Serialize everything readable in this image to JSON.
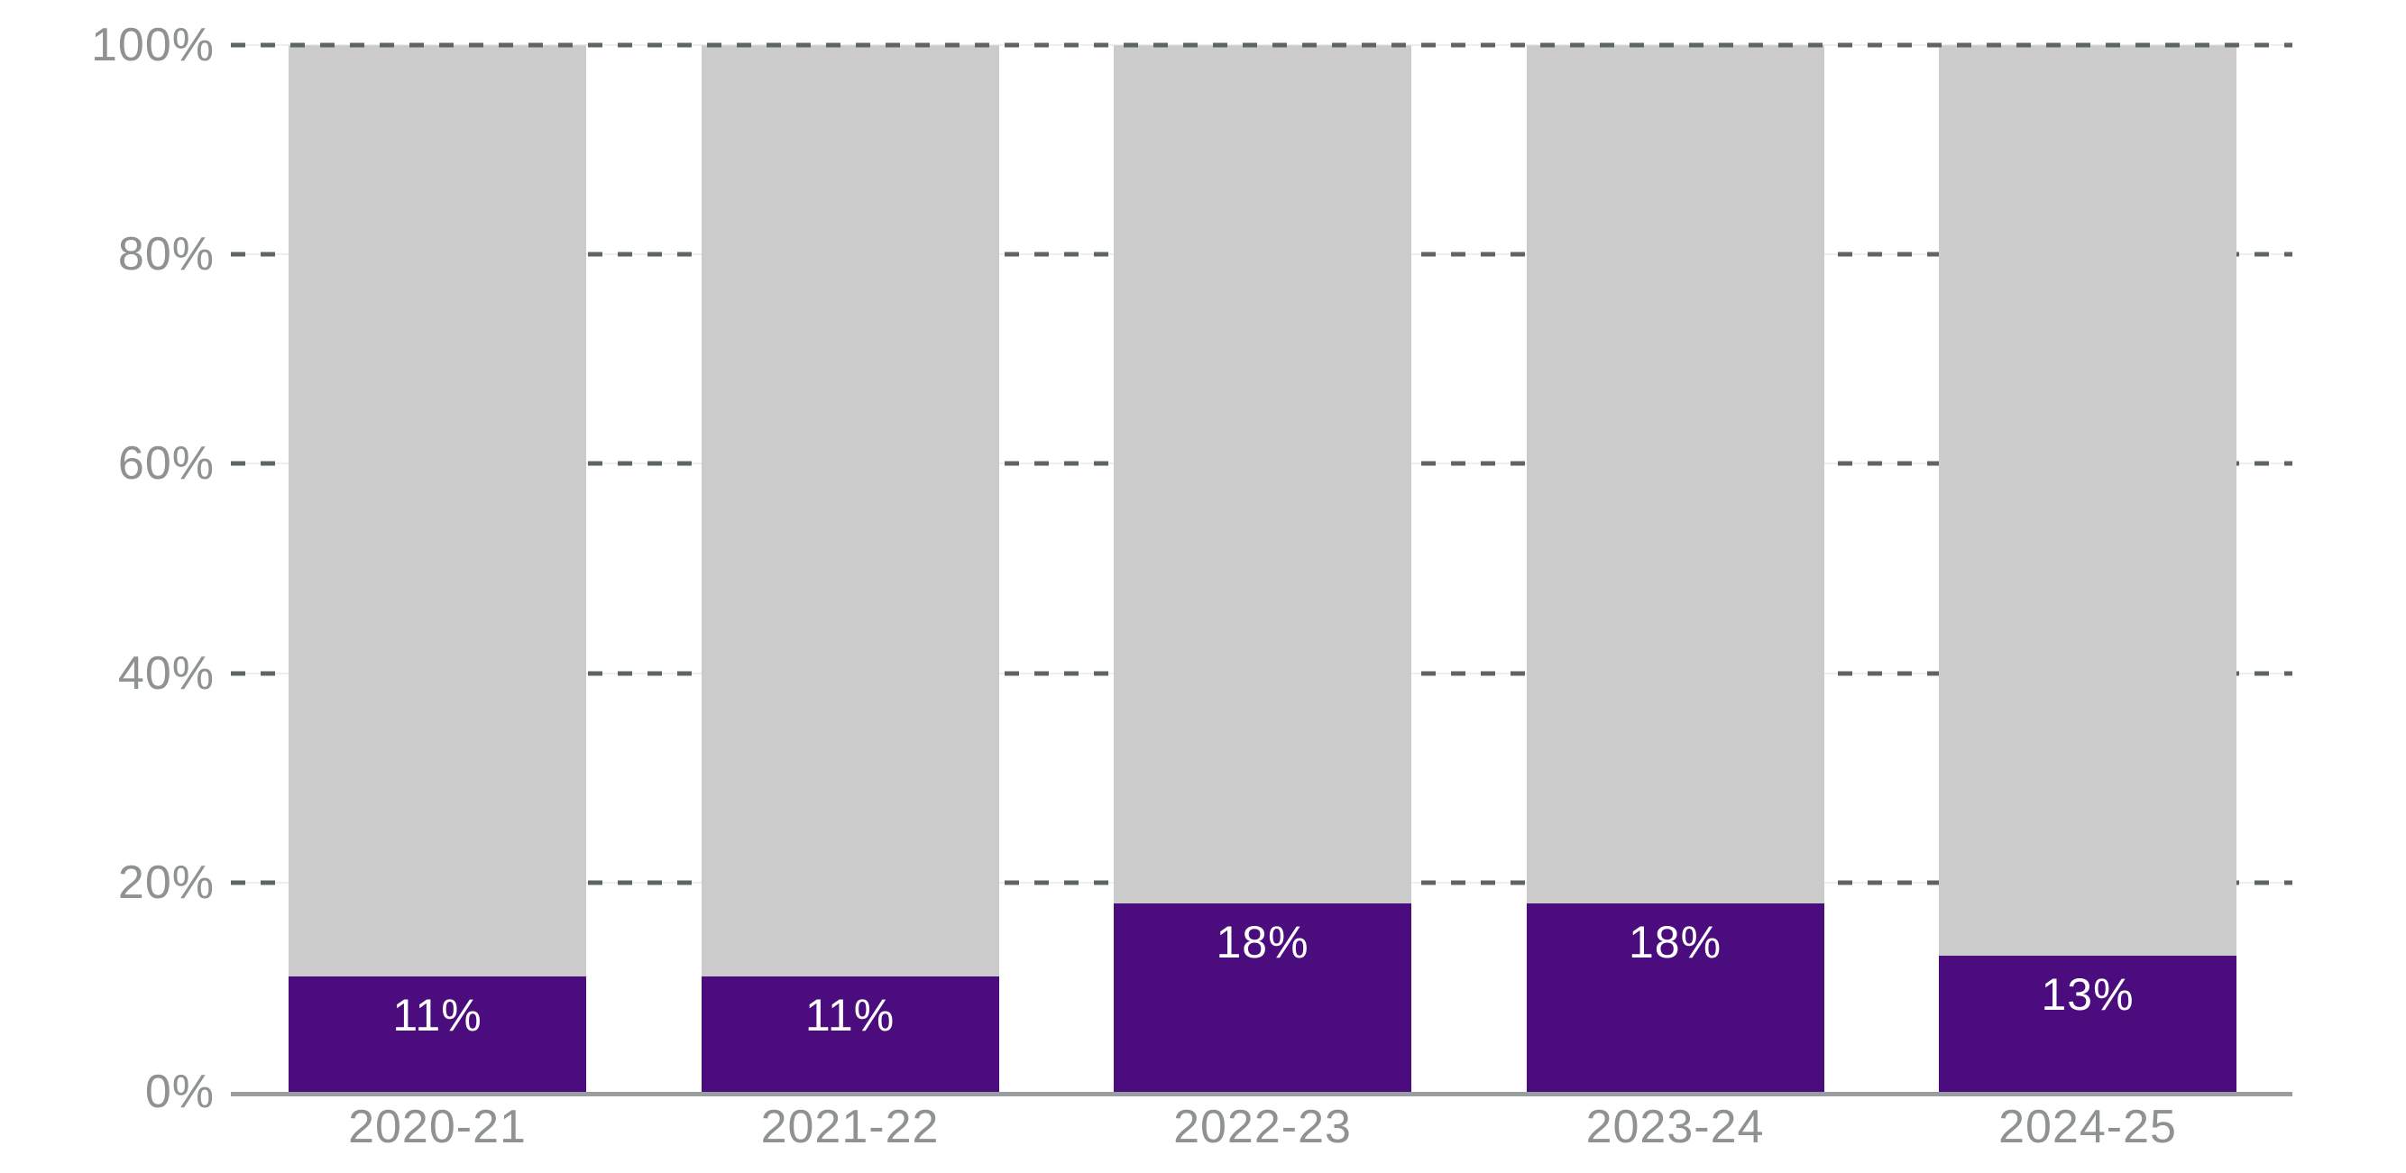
{
  "chart_data": {
    "type": "bar",
    "stacked": true,
    "orientation": "vertical",
    "title": "",
    "xlabel": "",
    "ylabel": "",
    "categories": [
      "2020-21",
      "2021-22",
      "2022-23",
      "2023-24",
      "2024-25"
    ],
    "series": [
      {
        "name": "highlighted-share",
        "color": "#4B0C7D",
        "values": [
          11,
          11,
          18,
          18,
          13
        ],
        "data_labels": [
          "11%",
          "11%",
          "18%",
          "18%",
          "13%"
        ],
        "data_label_color": "#ffffff"
      },
      {
        "name": "remainder",
        "color": "#CBCBCB",
        "values": [
          89,
          89,
          82,
          82,
          87
        ],
        "data_labels": [
          "",
          "",
          "",
          "",
          ""
        ],
        "data_label_color": ""
      }
    ],
    "ylim": [
      0,
      100
    ],
    "y_tick_labels": [
      "0%",
      "20%",
      "40%",
      "60%",
      "80%",
      "100%"
    ],
    "y_tick_values": [
      0,
      20,
      40,
      60,
      80,
      100
    ],
    "grid": "horizontal-dashed",
    "legend": "none"
  },
  "style": {
    "tick_label_color": "#8E9293",
    "grid_dash_color": "#5E6466",
    "axis_line_color": "#9B9EA0",
    "background_color": "#ffffff"
  }
}
